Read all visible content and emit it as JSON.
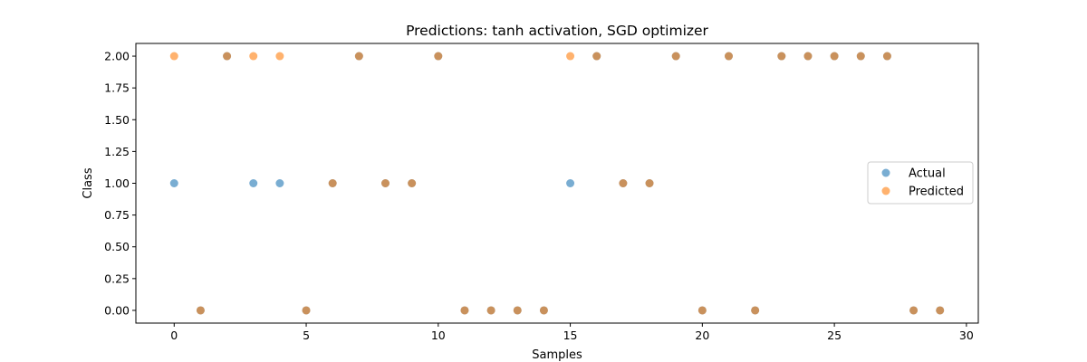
{
  "chart_data": {
    "type": "scatter",
    "title": "Predictions: tanh activation, SGD optimizer",
    "xlabel": "Samples",
    "ylabel": "Class",
    "xlim": [
      -1.45,
      30.45
    ],
    "ylim": [
      -0.1,
      2.1
    ],
    "xticks": [
      0,
      5,
      10,
      15,
      20,
      25,
      30
    ],
    "xtick_labels": [
      "0",
      "5",
      "10",
      "15",
      "20",
      "25",
      "30"
    ],
    "yticks": [
      0,
      0.25,
      0.5,
      0.75,
      1.0,
      1.25,
      1.5,
      1.75,
      2.0
    ],
    "ytick_labels": [
      "0.00",
      "0.25",
      "0.50",
      "0.75",
      "1.00",
      "1.25",
      "1.50",
      "1.75",
      "2.00"
    ],
    "grid": false,
    "legend_position": "center-right",
    "x": [
      0,
      1,
      2,
      3,
      4,
      5,
      6,
      7,
      8,
      9,
      10,
      11,
      12,
      13,
      14,
      15,
      16,
      17,
      18,
      19,
      20,
      21,
      22,
      23,
      24,
      25,
      26,
      27,
      28,
      29
    ],
    "series": [
      {
        "name": "Actual",
        "color": "#1f77b4",
        "values": [
          1,
          0,
          2,
          1,
          1,
          0,
          1,
          2,
          1,
          1,
          2,
          0,
          0,
          0,
          0,
          1,
          2,
          1,
          1,
          2,
          0,
          2,
          0,
          2,
          2,
          2,
          2,
          2,
          0,
          0
        ]
      },
      {
        "name": "Predicted",
        "color": "#ff7f0e",
        "values": [
          2,
          0,
          2,
          2,
          2,
          0,
          1,
          2,
          1,
          1,
          2,
          0,
          0,
          0,
          0,
          2,
          2,
          1,
          1,
          2,
          0,
          2,
          0,
          2,
          2,
          2,
          2,
          2,
          0,
          0
        ]
      }
    ],
    "marker_alpha": 0.6
  }
}
